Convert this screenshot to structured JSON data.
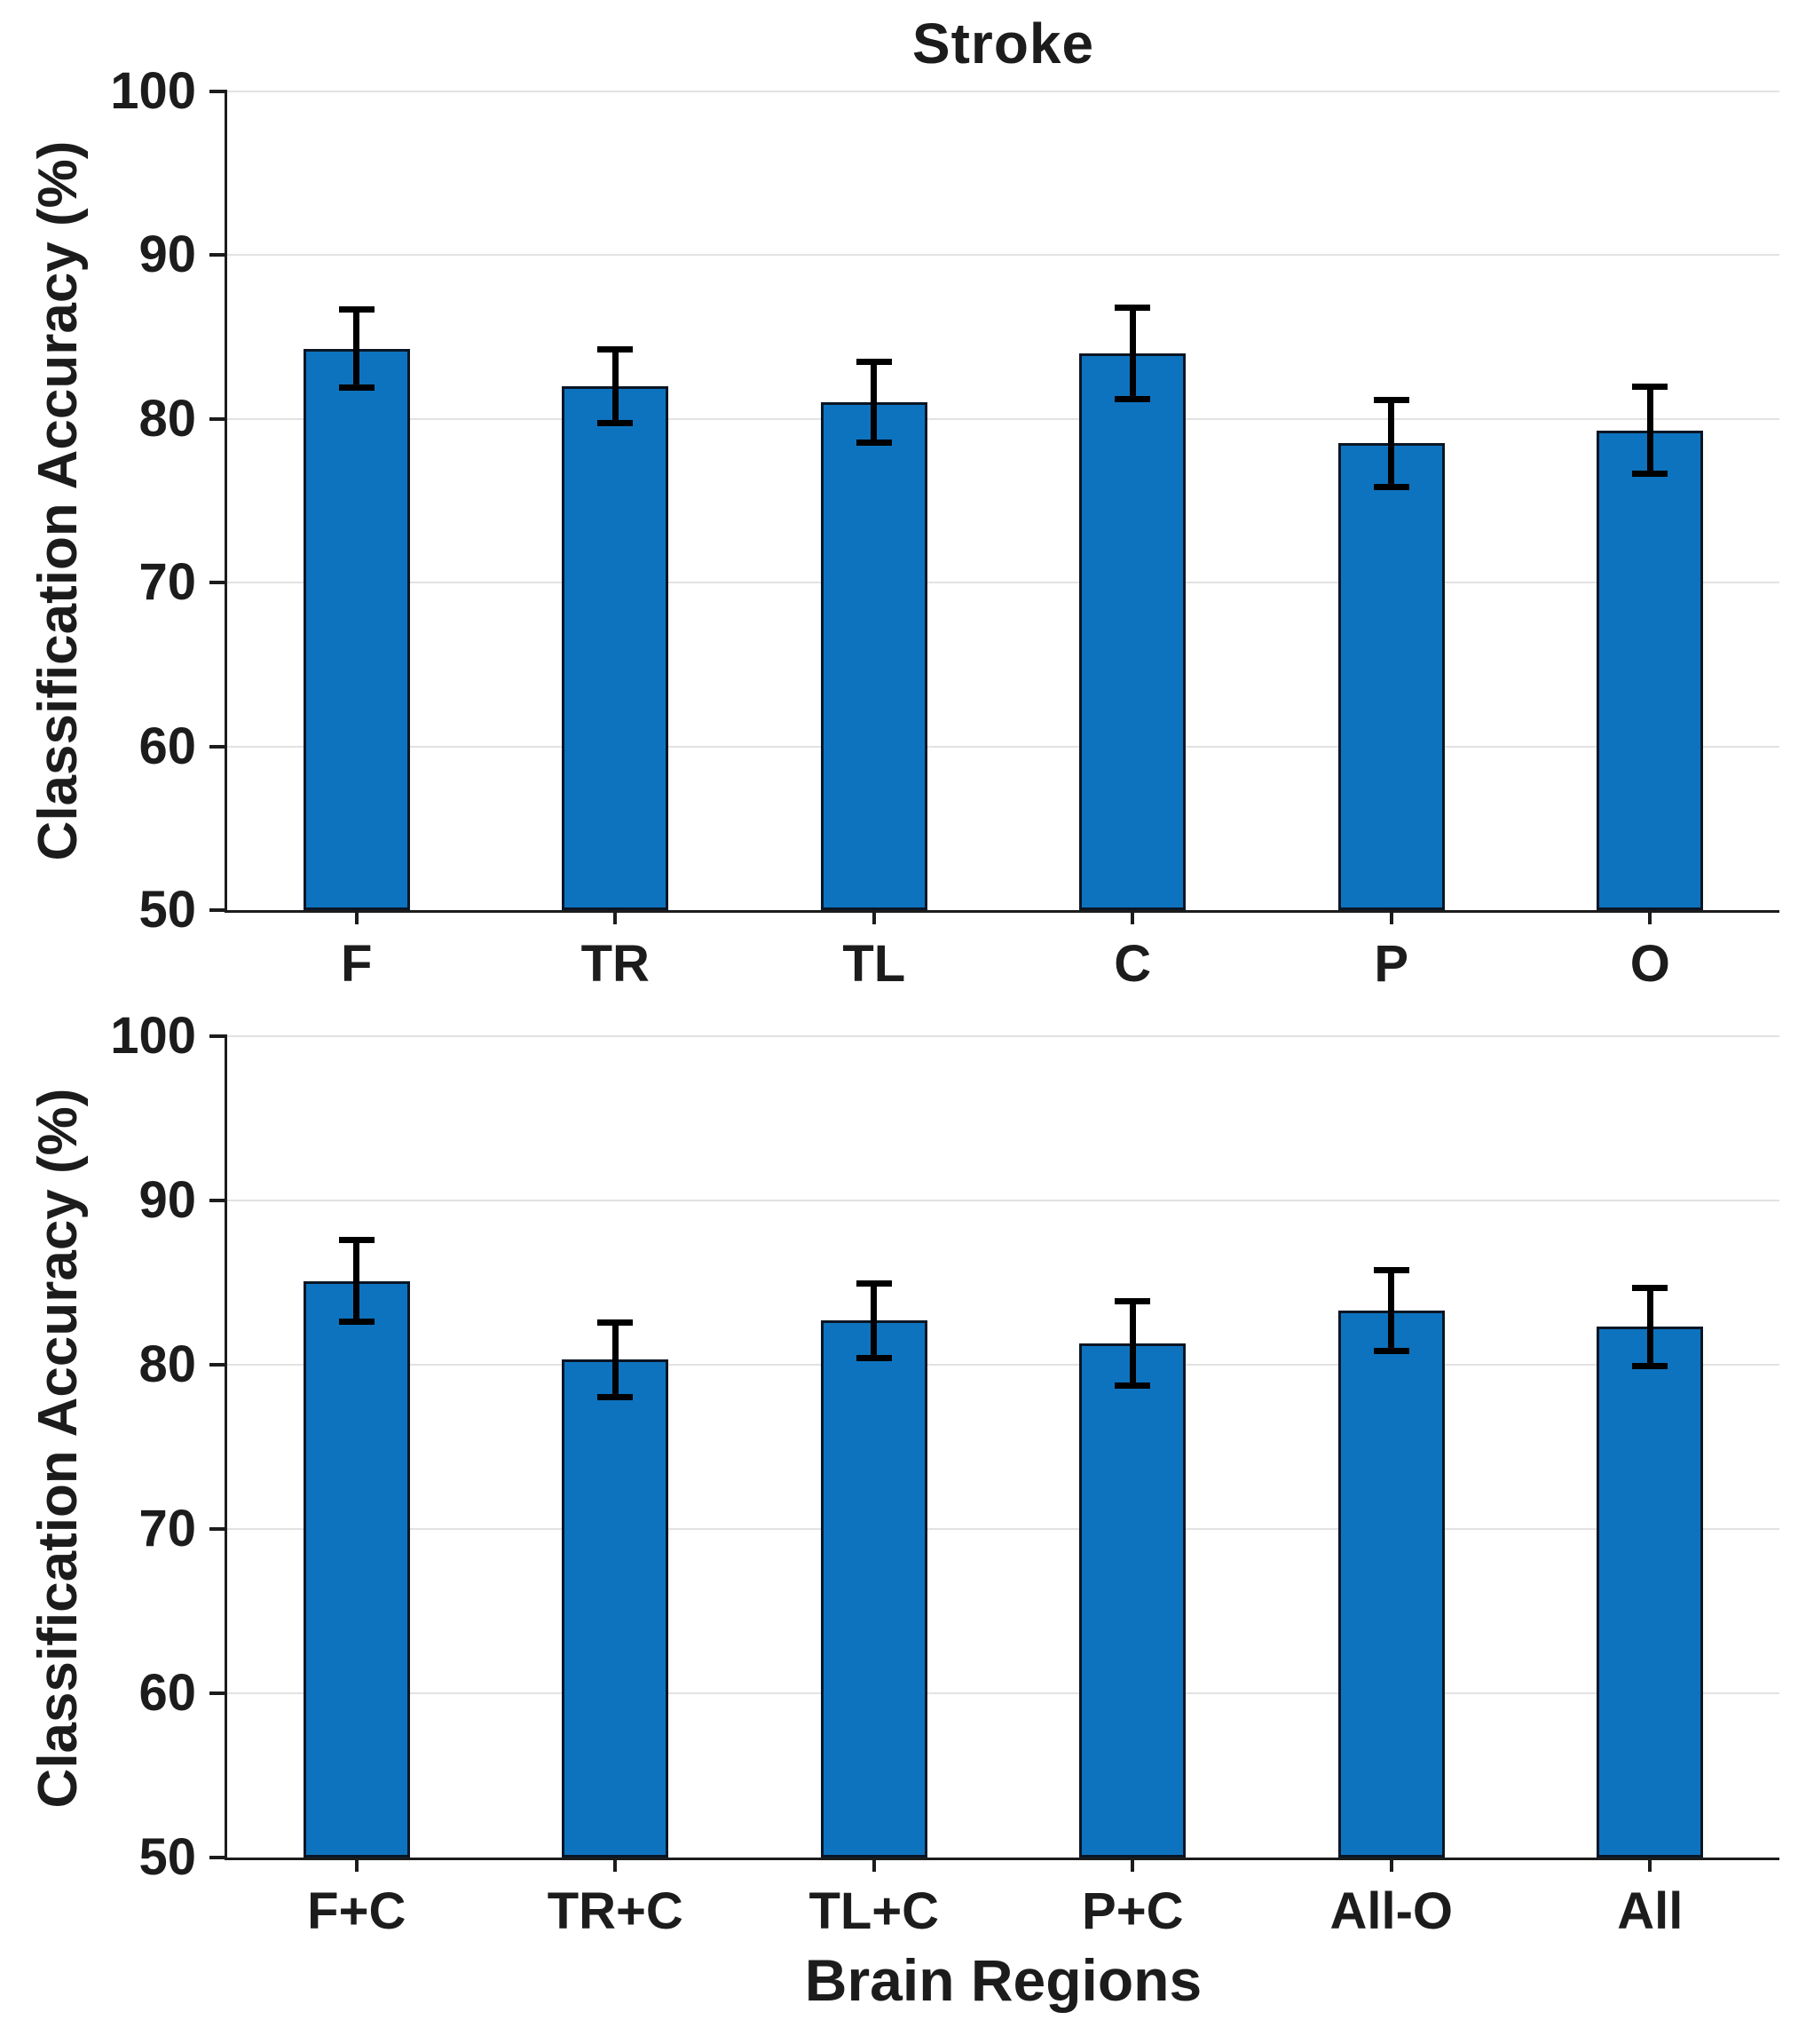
{
  "figure": {
    "title": "Stroke",
    "shared_ylabel": "Classification Accuracy (%)",
    "xlabel": "Brain Regions"
  },
  "style": {
    "bar_fill": "#0E73BE",
    "bar_edge": "#0a1625",
    "error_color": "#000000",
    "grid_color": "#e2e2e2",
    "axis_color": "#1c1c1c",
    "text_color": "#1c1c1c"
  },
  "chart_data": [
    {
      "type": "bar",
      "title": "Stroke",
      "ylabel": "Classification Accuracy (%)",
      "xlabel": "",
      "categories": [
        "F",
        "TR",
        "TL",
        "C",
        "P",
        "O"
      ],
      "values": [
        84.3,
        82.0,
        81.0,
        84.0,
        78.5,
        79.3
      ],
      "errors": [
        2.4,
        2.3,
        2.5,
        2.8,
        2.7,
        2.7
      ],
      "ylim": [
        50,
        100
      ],
      "yticks": [
        50,
        60,
        70,
        80,
        90,
        100
      ],
      "grid": true,
      "legend": null
    },
    {
      "type": "bar",
      "title": "",
      "ylabel": "Classification Accuracy (%)",
      "xlabel": "Brain Regions",
      "categories": [
        "F+C",
        "TR+C",
        "TL+C",
        "P+C",
        "All-O",
        "All"
      ],
      "values": [
        85.1,
        80.3,
        82.7,
        81.3,
        83.3,
        82.3
      ],
      "errors": [
        2.5,
        2.3,
        2.3,
        2.6,
        2.5,
        2.4
      ],
      "ylim": [
        50,
        100
      ],
      "yticks": [
        50,
        60,
        70,
        80,
        90,
        100
      ],
      "grid": true,
      "legend": null
    }
  ]
}
